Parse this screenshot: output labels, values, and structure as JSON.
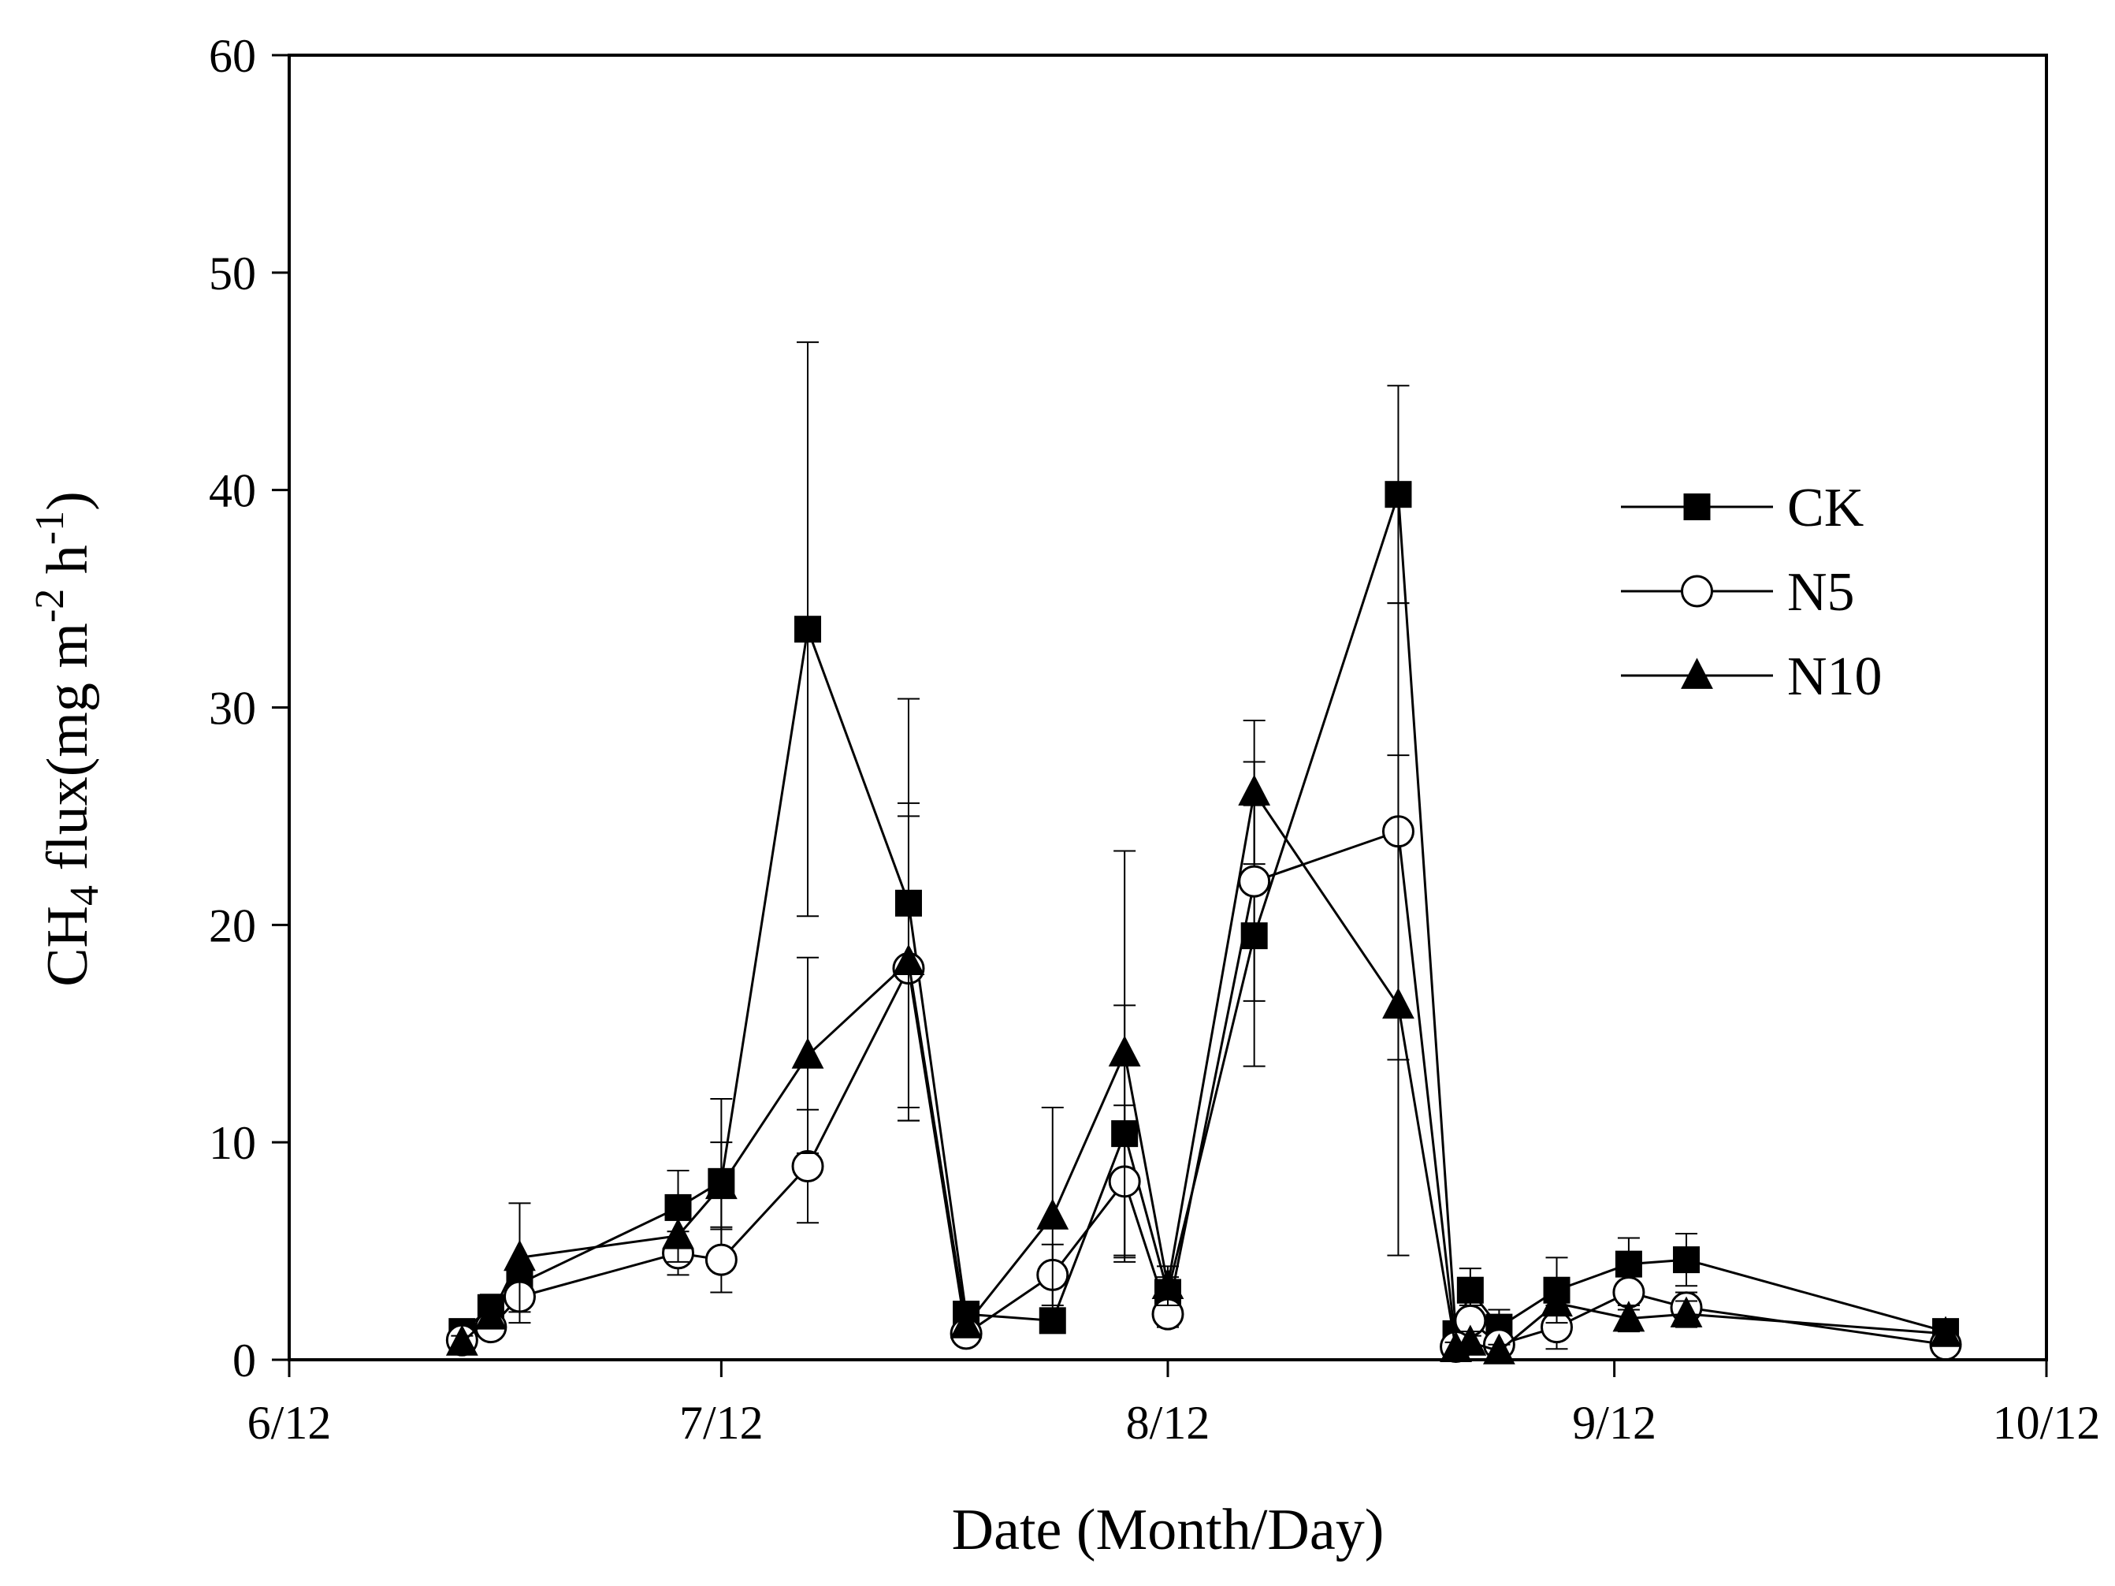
{
  "chart_data": {
    "type": "line",
    "title": "",
    "xlabel": "Date (Month/Day)",
    "ylabel": {
      "prefix": "CH",
      "subscript": "4",
      "main": " flux(mg m",
      "sup1": "-2",
      "mid": " h",
      "sup2": "-1",
      "suffix": ")"
    },
    "x_unit": "day offset from 6/12",
    "xlim": [
      0,
      122
    ],
    "ylim": [
      0,
      60
    ],
    "x_ticks": [
      {
        "value": 0,
        "label": "6/12"
      },
      {
        "value": 30,
        "label": "7/12"
      },
      {
        "value": 61,
        "label": "8/12"
      },
      {
        "value": 92,
        "label": "9/12"
      },
      {
        "value": 122,
        "label": "10/12"
      }
    ],
    "y_ticks": [
      0,
      10,
      20,
      30,
      40,
      50,
      60
    ],
    "legend_position": "upper-right",
    "series": [
      {
        "name": "CK",
        "marker": "square-filled",
        "x": [
          12,
          14,
          16,
          27,
          30,
          36,
          43,
          47,
          53,
          58,
          61,
          67,
          77,
          81,
          82,
          84,
          88,
          93,
          97,
          115
        ],
        "y": [
          1.3,
          2.4,
          3.5,
          7.0,
          8.2,
          33.6,
          21.0,
          2.1,
          1.8,
          10.4,
          3.1,
          19.5,
          39.8,
          1.2,
          3.2,
          1.5,
          3.2,
          4.4,
          4.6,
          1.3
        ],
        "err": [
          0.4,
          0.6,
          1.0,
          1.7,
          3.8,
          13.2,
          9.4,
          0.5,
          0.5,
          5.9,
          0.7,
          6.0,
          5.0,
          0.5,
          1.0,
          0.8,
          1.5,
          1.2,
          1.2,
          0.5
        ]
      },
      {
        "name": "N5",
        "marker": "circle-open",
        "x": [
          12,
          14,
          16,
          27,
          30,
          36,
          43,
          47,
          53,
          58,
          61,
          67,
          77,
          81,
          82,
          84,
          88,
          93,
          97,
          115
        ],
        "y": [
          0.9,
          1.5,
          2.9,
          4.9,
          4.6,
          8.9,
          18.0,
          1.2,
          3.9,
          8.2,
          2.1,
          22.0,
          24.3,
          0.6,
          1.8,
          0.7,
          1.5,
          3.1,
          2.4,
          0.7
        ],
        "err": [
          0.3,
          0.5,
          1.2,
          1.0,
          1.5,
          2.6,
          7.0,
          0.4,
          1.4,
          3.5,
          0.6,
          5.5,
          10.5,
          0.4,
          0.7,
          0.4,
          1.0,
          0.8,
          0.7,
          0.3
        ]
      },
      {
        "name": "N10",
        "marker": "triangle-filled",
        "x": [
          12,
          14,
          16,
          27,
          30,
          36,
          43,
          47,
          53,
          58,
          61,
          67,
          77,
          81,
          82,
          84,
          88,
          93,
          97,
          115
        ],
        "y": [
          0.8,
          2.0,
          4.7,
          5.7,
          8.0,
          14.0,
          18.3,
          1.6,
          6.6,
          14.1,
          3.4,
          26.1,
          16.3,
          0.5,
          0.8,
          0.4,
          2.6,
          1.9,
          2.1,
          1.2
        ],
        "err": [
          0.3,
          0.5,
          2.5,
          1.2,
          2.0,
          4.5,
          7.3,
          0.5,
          5.0,
          9.3,
          0.9,
          3.3,
          11.5,
          0.3,
          0.5,
          0.3,
          0.9,
          0.6,
          0.6,
          0.4
        ]
      }
    ]
  }
}
